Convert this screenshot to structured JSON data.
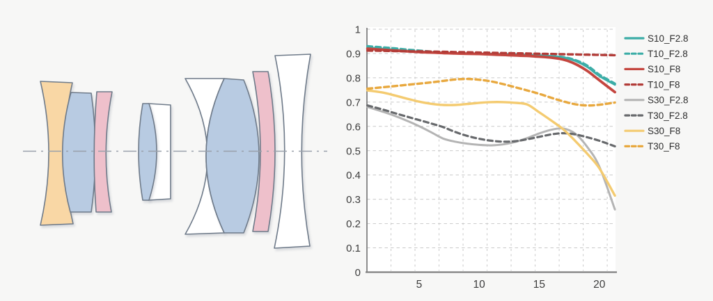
{
  "page": {
    "background": "#f7f7f6",
    "description_labels": {}
  },
  "lens_diagram": {
    "axis_color": "#9aa1ab",
    "outline_color": "#6e7a89",
    "elements": [
      {
        "label": "biconcave-orange",
        "fill": "#f9d7a5"
      },
      {
        "label": "biconvex-blue",
        "fill": "#b8cbe2"
      },
      {
        "label": "meniscus-pink",
        "fill": "#eec0cb"
      },
      {
        "label": "plano-white",
        "fill": "#ffffff"
      },
      {
        "label": "convex-blue",
        "fill": "#b8cbe2"
      },
      {
        "label": "concave-white",
        "fill": "#ffffff"
      },
      {
        "label": "biconvex-blue-large",
        "fill": "#b8cbe2"
      },
      {
        "label": "meniscus-pink-rear",
        "fill": "#eec0cb"
      },
      {
        "label": "biconcave-white-rear",
        "fill": "#ffffff"
      }
    ]
  },
  "chart_data": {
    "type": "line",
    "title": "",
    "xlabel": "",
    "ylabel": "",
    "xlim": [
      0.66,
      21.35
    ],
    "ylim": [
      0,
      1
    ],
    "xticks": [
      5,
      10,
      15,
      20
    ],
    "yticks": [
      0,
      0.1,
      0.2,
      0.3,
      0.4,
      0.5,
      0.6,
      0.7,
      0.8,
      0.9,
      1
    ],
    "grid": "dashed",
    "grid_x": [
      2.66,
      4.66,
      6.66,
      8.66,
      10.66,
      12.66,
      14.66,
      16.66,
      18.66,
      20.66
    ],
    "legend_position": "right",
    "colors": {
      "plot_bg": "#ffffff",
      "grid": "#c9c9c9",
      "axis": "#808080",
      "tick_label": "#3d3d3d",
      "legend_label": "#2e2e2e"
    },
    "x": [
      0.7,
      2,
      3,
      4,
      5,
      6,
      7,
      8,
      9,
      10,
      11,
      12,
      13,
      14,
      15,
      16,
      17,
      18,
      19,
      20,
      21.3
    ],
    "series": [
      {
        "name": "S10_F2.8",
        "color": "#3cada7",
        "dash": false,
        "width": 3.2,
        "values": [
          0.924,
          0.919,
          0.915,
          0.911,
          0.907,
          0.905,
          0.903,
          0.901,
          0.9,
          0.899,
          0.898,
          0.897,
          0.896,
          0.894,
          0.892,
          0.889,
          0.884,
          0.87,
          0.845,
          0.808,
          0.772
        ]
      },
      {
        "name": "T10_F2.8",
        "color": "#3cada7",
        "dash": true,
        "width": 3.4,
        "values": [
          0.93,
          0.925,
          0.921,
          0.916,
          0.912,
          0.908,
          0.905,
          0.902,
          0.9,
          0.898,
          0.896,
          0.894,
          0.892,
          0.891,
          0.89,
          0.888,
          0.885,
          0.873,
          0.85,
          0.813,
          0.776
        ]
      },
      {
        "name": "S10_F8",
        "color": "#c4463f",
        "dash": false,
        "width": 3.8,
        "values": [
          0.92,
          0.915,
          0.912,
          0.909,
          0.906,
          0.904,
          0.902,
          0.9,
          0.899,
          0.898,
          0.896,
          0.894,
          0.892,
          0.89,
          0.887,
          0.883,
          0.875,
          0.857,
          0.828,
          0.79,
          0.741
        ]
      },
      {
        "name": "T10_F8",
        "color": "#b23c38",
        "dash": true,
        "width": 3.4,
        "values": [
          0.912,
          0.911,
          0.91,
          0.909,
          0.909,
          0.908,
          0.907,
          0.906,
          0.905,
          0.904,
          0.903,
          0.902,
          0.901,
          0.9,
          0.899,
          0.898,
          0.897,
          0.896,
          0.895,
          0.894,
          0.893
        ]
      },
      {
        "name": "S30_F2.8",
        "color": "#b4b4b4",
        "dash": false,
        "width": 3.0,
        "values": [
          0.68,
          0.66,
          0.643,
          0.623,
          0.601,
          0.576,
          0.55,
          0.537,
          0.529,
          0.524,
          0.522,
          0.526,
          0.536,
          0.552,
          0.571,
          0.586,
          0.591,
          0.57,
          0.515,
          0.435,
          0.258
        ]
      },
      {
        "name": "T30_F2.8",
        "color": "#67696c",
        "dash": true,
        "width": 3.2,
        "values": [
          0.686,
          0.669,
          0.654,
          0.64,
          0.626,
          0.612,
          0.597,
          0.577,
          0.561,
          0.549,
          0.541,
          0.537,
          0.539,
          0.547,
          0.557,
          0.567,
          0.572,
          0.567,
          0.555,
          0.541,
          0.518
        ]
      },
      {
        "name": "S30_F8",
        "color": "#f4cb70",
        "dash": false,
        "width": 3.4,
        "values": [
          0.748,
          0.739,
          0.727,
          0.714,
          0.702,
          0.693,
          0.688,
          0.688,
          0.692,
          0.697,
          0.7,
          0.7,
          0.697,
          0.69,
          0.658,
          0.624,
          0.588,
          0.54,
          0.487,
          0.428,
          0.315
        ]
      },
      {
        "name": "T30_F8",
        "color": "#e8a83e",
        "dash": true,
        "width": 3.4,
        "values": [
          0.755,
          0.761,
          0.766,
          0.771,
          0.776,
          0.781,
          0.787,
          0.793,
          0.795,
          0.792,
          0.785,
          0.774,
          0.761,
          0.748,
          0.734,
          0.718,
          0.703,
          0.691,
          0.686,
          0.689,
          0.698
        ]
      }
    ]
  }
}
